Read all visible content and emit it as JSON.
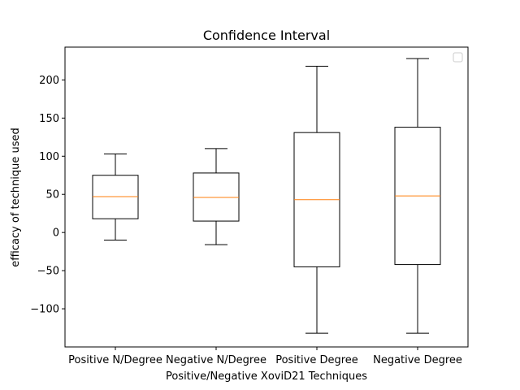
{
  "chart_data": {
    "type": "boxplot",
    "title": "Confidence Interval",
    "xlabel": "Positive/Negative XoviD21 Techniques",
    "ylabel": "efficacy of technique used",
    "ylim": [
      -150,
      243
    ],
    "yticks": [
      -100,
      -50,
      0,
      50,
      100,
      150,
      200
    ],
    "grid": false,
    "legend": "top-right, empty",
    "categories": [
      "Positive N/Degree",
      "Negative N/Degree",
      "Positive Degree",
      "Negative Degree"
    ],
    "boxes": [
      {
        "whisker_low": -10,
        "q1": 18,
        "median": 47,
        "q3": 75,
        "whisker_high": 103
      },
      {
        "whisker_low": -16,
        "q1": 15,
        "median": 46,
        "q3": 78,
        "whisker_high": 110
      },
      {
        "whisker_low": -132,
        "q1": -45,
        "median": 43,
        "q3": 131,
        "whisker_high": 218
      },
      {
        "whisker_low": -132,
        "q1": -42,
        "median": 48,
        "q3": 138,
        "whisker_high": 228
      }
    ],
    "colors": {
      "box": "#000000",
      "median": "#ff7f0e",
      "background": "#ffffff"
    }
  }
}
